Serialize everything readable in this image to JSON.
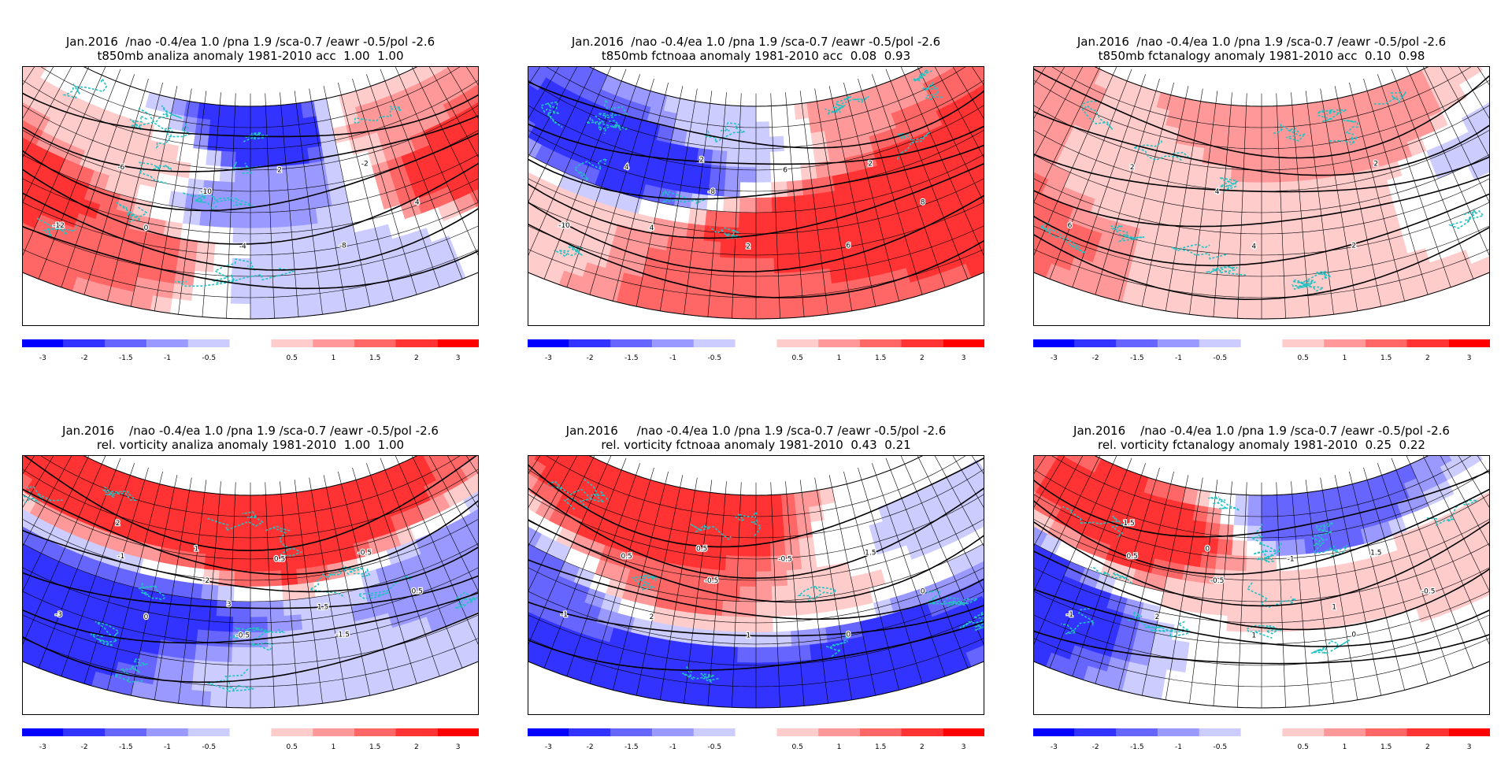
{
  "colorbar": {
    "labels": [
      "-3",
      "-2",
      "-1.5",
      "-1",
      "-0.5",
      "0.5",
      "1",
      "1.5",
      "2",
      "3"
    ],
    "colors": [
      "#0000ff",
      "#3333ff",
      "#6666ff",
      "#9999ff",
      "#ccccff",
      "#ffffff",
      "#ffcccc",
      "#ff9999",
      "#ff6666",
      "#ff3333",
      "#ff0000"
    ]
  },
  "panels": [
    {
      "title_line1": "Jan.2016  /nao -0.4/ea 1.0 /pna 1.9 /sca-0.7 /eawr -0.5/pol -2.6",
      "title_line2": "t850mb analiza anomaly 1981-2010 acc  1.00  1.00",
      "field": [
        {
          "lon": 0.1,
          "lat": 0.4,
          "v": 2.6
        },
        {
          "lon": 0.3,
          "lat": 0.25,
          "v": 1.8
        },
        {
          "lon": 0.55,
          "lat": 0.85,
          "v": -3.0
        },
        {
          "lon": 0.5,
          "lat": 0.55,
          "v": -1.4
        },
        {
          "lon": 0.58,
          "lat": 0.2,
          "v": -1.0
        },
        {
          "lon": 0.92,
          "lat": 0.55,
          "v": 2.8
        },
        {
          "lon": 0.75,
          "lat": 0.85,
          "v": 1.2
        },
        {
          "lon": 0.3,
          "lat": 0.7,
          "v": 0.8
        }
      ],
      "contour_labels": [
        "-12",
        "-10",
        "-8",
        "-6",
        "-4",
        "-2",
        "0",
        "2",
        "4"
      ]
    },
    {
      "title_line1": "Jan.2016  /nao -0.4/ea 1.0 /pna 1.9 /sca-0.7 /eawr -0.5/pol -2.6",
      "title_line2": "t850mb fctnoaa anomaly 1981-2010 acc  0.08  0.93",
      "field": [
        {
          "lon": 0.3,
          "lat": 0.7,
          "v": -2.8
        },
        {
          "lon": 0.15,
          "lat": 0.2,
          "v": 0.8
        },
        {
          "lon": 0.6,
          "lat": 0.4,
          "v": 2.6
        },
        {
          "lon": 0.85,
          "lat": 0.55,
          "v": 2.8
        },
        {
          "lon": 0.75,
          "lat": 0.9,
          "v": 1.5
        },
        {
          "lon": 0.45,
          "lat": 0.15,
          "v": 1.8
        },
        {
          "lon": 0.45,
          "lat": 0.85,
          "v": -0.6
        }
      ],
      "contour_labels": [
        "-10",
        "-8",
        "6",
        "4",
        "2",
        "2",
        "4",
        "6",
        "8",
        "2"
      ]
    },
    {
      "title_line1": "Jan.2016  /nao -0.4/ea 1.0 /pna 1.9 /sca-0.7 /eawr -0.5/pol -2.6",
      "title_line2": "t850mb fctanalogy anomaly 1981-2010 acc  0.10  0.98",
      "field": [
        {
          "lon": 0.1,
          "lat": 0.25,
          "v": 1.8
        },
        {
          "lon": 0.3,
          "lat": 0.45,
          "v": 0.9
        },
        {
          "lon": 0.6,
          "lat": 0.6,
          "v": 1.0
        },
        {
          "lon": 0.72,
          "lat": 0.75,
          "v": 1.4
        },
        {
          "lon": 0.88,
          "lat": 0.6,
          "v": -0.7
        },
        {
          "lon": 0.5,
          "lat": 0.2,
          "v": 0.5
        }
      ],
      "contour_labels": [
        "6",
        "4",
        "2",
        "2",
        "4",
        "2"
      ]
    },
    {
      "title_line1": "Jan.2016    /nao -0.4/ea 1.0 /pna 1.9 /sca-0.7 /eawr -0.5/pol -2.6",
      "title_line2": "rel. vorticity analiza anomaly 1981-2010  1.00  1.00",
      "field": [
        {
          "lon": 0.25,
          "lat": 0.9,
          "v": 2.8
        },
        {
          "lon": 0.15,
          "lat": 0.3,
          "v": -3.0
        },
        {
          "lon": 0.35,
          "lat": 0.4,
          "v": -2.2
        },
        {
          "lon": 0.55,
          "lat": 0.75,
          "v": 2.6
        },
        {
          "lon": 0.7,
          "lat": 0.85,
          "v": 2.2
        },
        {
          "lon": 0.85,
          "lat": 0.5,
          "v": -1.4
        },
        {
          "lon": 0.55,
          "lat": 0.2,
          "v": -0.8
        }
      ],
      "contour_labels": [
        "-3",
        "-2",
        "-1.5",
        "-1",
        "-0.5",
        "-0.5",
        "0",
        "0.5",
        "0.5",
        "1",
        "1.5",
        "2",
        "3"
      ]
    },
    {
      "title_line1": "Jan.2016     /nao -0.4/ea 1.0 /pna 1.9 /sca-0.7 /eawr -0.5/pol -2.6",
      "title_line2": "rel. vorticity fctnoaa anomaly 1981-2010  0.43  0.21",
      "field": [
        {
          "lon": 0.35,
          "lat": 0.8,
          "v": 3.0
        },
        {
          "lon": 0.4,
          "lat": 0.55,
          "v": 1.8
        },
        {
          "lon": 0.1,
          "lat": 0.35,
          "v": -2.0
        },
        {
          "lon": 0.4,
          "lat": 0.1,
          "v": -2.8
        },
        {
          "lon": 0.7,
          "lat": 0.25,
          "v": -2.2
        },
        {
          "lon": 0.8,
          "lat": 0.7,
          "v": -0.6
        },
        {
          "lon": 0.6,
          "lat": 0.5,
          "v": 0.8
        }
      ],
      "contour_labels": [
        "-1",
        "-0.5",
        "0",
        "0.5",
        "1",
        "1.5",
        "2",
        "-0.5",
        "0",
        "0.5"
      ]
    },
    {
      "title_line1": "Jan.2016    /nao -0.4/ea 1.0 /pna 1.9 /sca-0.7 /eawr -0.5/pol -2.6",
      "title_line2": "rel. vorticity fctanalogy anomaly 1981-2010  0.25  0.22",
      "field": [
        {
          "lon": 0.1,
          "lat": 0.3,
          "v": -2.8
        },
        {
          "lon": 0.3,
          "lat": 0.75,
          "v": 2.6
        },
        {
          "lon": 0.62,
          "lat": 0.85,
          "v": -2.0
        },
        {
          "lon": 0.5,
          "lat": 0.55,
          "v": 0.8
        },
        {
          "lon": 0.8,
          "lat": 0.55,
          "v": 1.0
        },
        {
          "lon": 0.55,
          "lat": 0.15,
          "v": -0.3
        }
      ],
      "contour_labels": [
        "-1",
        "-0.5",
        "0",
        "0.5",
        "1",
        "1.5",
        "2",
        "-1",
        "-0.5",
        "0",
        "1",
        "1.5"
      ]
    }
  ]
}
